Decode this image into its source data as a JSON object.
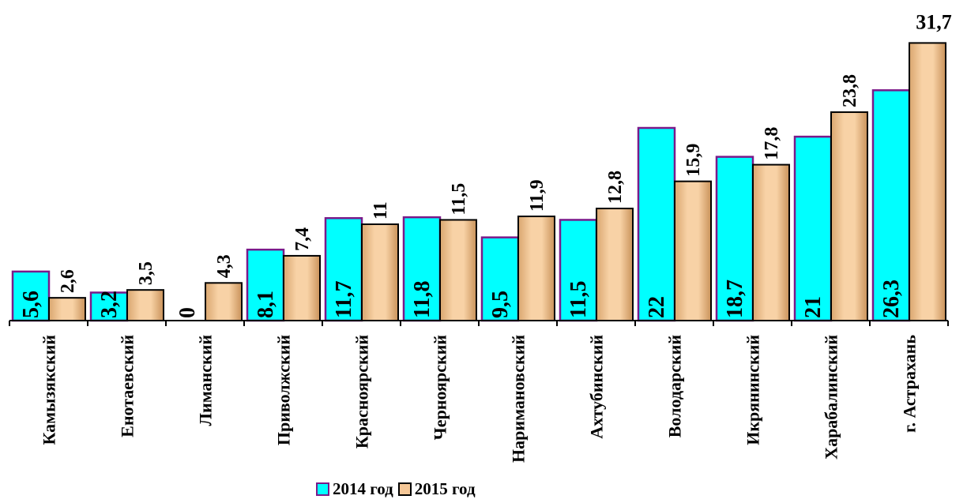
{
  "chart_data": {
    "type": "bar",
    "title": "",
    "xlabel": "",
    "ylabel": "",
    "categories": [
      "Камызякский",
      "Енотаевский",
      "Лиманский",
      "Приволжский",
      "Красноярский",
      "Черноярский",
      "Наримановский",
      "Ахтубинский",
      "Володарский",
      "Икрянинский",
      "Харабалинский",
      "г. Астрахань"
    ],
    "series": [
      {
        "name": "2014 год",
        "values": [
          5.6,
          3.2,
          0,
          8.1,
          11.7,
          11.8,
          9.5,
          11.5,
          22,
          18.7,
          21,
          26.3
        ],
        "labels": [
          "5,6",
          "3,2",
          "0",
          "8,1",
          "11,7",
          "11,8",
          "9,5",
          "11,5",
          "22",
          "18,7",
          "21",
          "26,3"
        ],
        "color": "#00ffff",
        "border": "#7a1a8a"
      },
      {
        "name": "2015 год",
        "values": [
          2.6,
          3.5,
          4.3,
          7.4,
          11,
          11.5,
          11.9,
          12.8,
          15.9,
          17.8,
          23.8,
          31.7
        ],
        "labels": [
          "2,6",
          "3,5",
          "4,3",
          "7,4",
          "11",
          "11,5",
          "11,9",
          "12,8",
          "15,9",
          "17,8",
          "23,8",
          "31,7"
        ],
        "color": "#f5c797",
        "border": "#000000"
      }
    ],
    "ylim": [
      0,
      33
    ],
    "grid": false,
    "legend_position": "bottom"
  }
}
